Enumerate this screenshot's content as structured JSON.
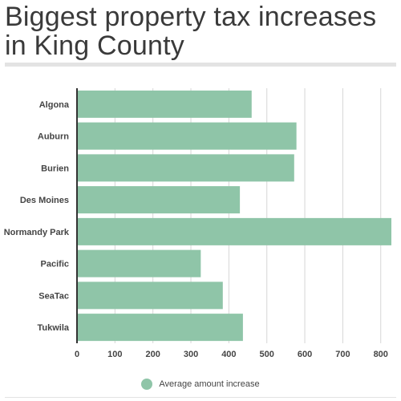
{
  "chart_data": {
    "type": "bar",
    "orientation": "horizontal",
    "title": "Biggest property tax increases in King County",
    "categories": [
      "Algona",
      "Auburn",
      "Burien",
      "Des Moines",
      "Normandy Park",
      "Pacific",
      "SeaTac",
      "Tukwila"
    ],
    "series": [
      {
        "name": "Average amount increase",
        "values": [
          460,
          578,
          572,
          429,
          828,
          326,
          384,
          437
        ]
      }
    ],
    "xlim": [
      0,
      830
    ],
    "xticks": [
      0,
      100,
      200,
      300,
      400,
      500,
      600,
      700,
      800
    ],
    "grid": true,
    "legend_position": "bottom",
    "bar_color": "#8fc5a8",
    "xlabel": "",
    "ylabel": ""
  }
}
